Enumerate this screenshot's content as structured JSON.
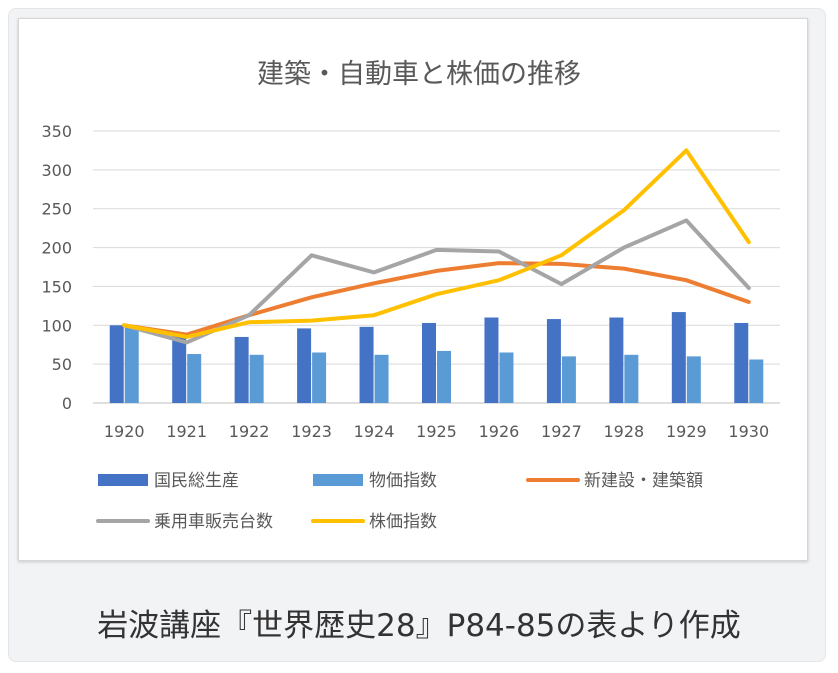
{
  "caption": "岩波講座『世界歴史28』P84-85の表より作成",
  "chart_data": {
    "type": "bar+line",
    "title": "建築・自動車と株価の推移",
    "categories": [
      "1920",
      "1921",
      "1922",
      "1923",
      "1924",
      "1925",
      "1926",
      "1927",
      "1928",
      "1929",
      "1930"
    ],
    "ylim": [
      0,
      350
    ],
    "yticks": [
      0,
      50,
      100,
      150,
      200,
      250,
      300,
      350
    ],
    "grid": true,
    "legend_position": "bottom",
    "series": [
      {
        "name": "国民総生産",
        "kind": "bar",
        "color": "#4472c4",
        "values": [
          100,
          88,
          85,
          96,
          98,
          103,
          110,
          108,
          110,
          117,
          103
        ]
      },
      {
        "name": "物価指数",
        "kind": "bar",
        "color": "#5b9bd5",
        "values": [
          100,
          63,
          62,
          65,
          62,
          67,
          65,
          60,
          62,
          60,
          56
        ]
      },
      {
        "name": "新建設・建築額",
        "kind": "line",
        "color": "#ed7d31",
        "values": [
          100,
          88,
          113,
          136,
          154,
          170,
          180,
          179,
          173,
          158,
          130
        ]
      },
      {
        "name": "乗用車販売台数",
        "kind": "line",
        "color": "#a5a5a5",
        "values": [
          100,
          78,
          113,
          190,
          168,
          197,
          195,
          153,
          200,
          235,
          148
        ]
      },
      {
        "name": "株価指数",
        "kind": "line",
        "color": "#ffc000",
        "values": [
          100,
          85,
          104,
          106,
          113,
          140,
          158,
          190,
          248,
          325,
          207
        ]
      }
    ]
  }
}
